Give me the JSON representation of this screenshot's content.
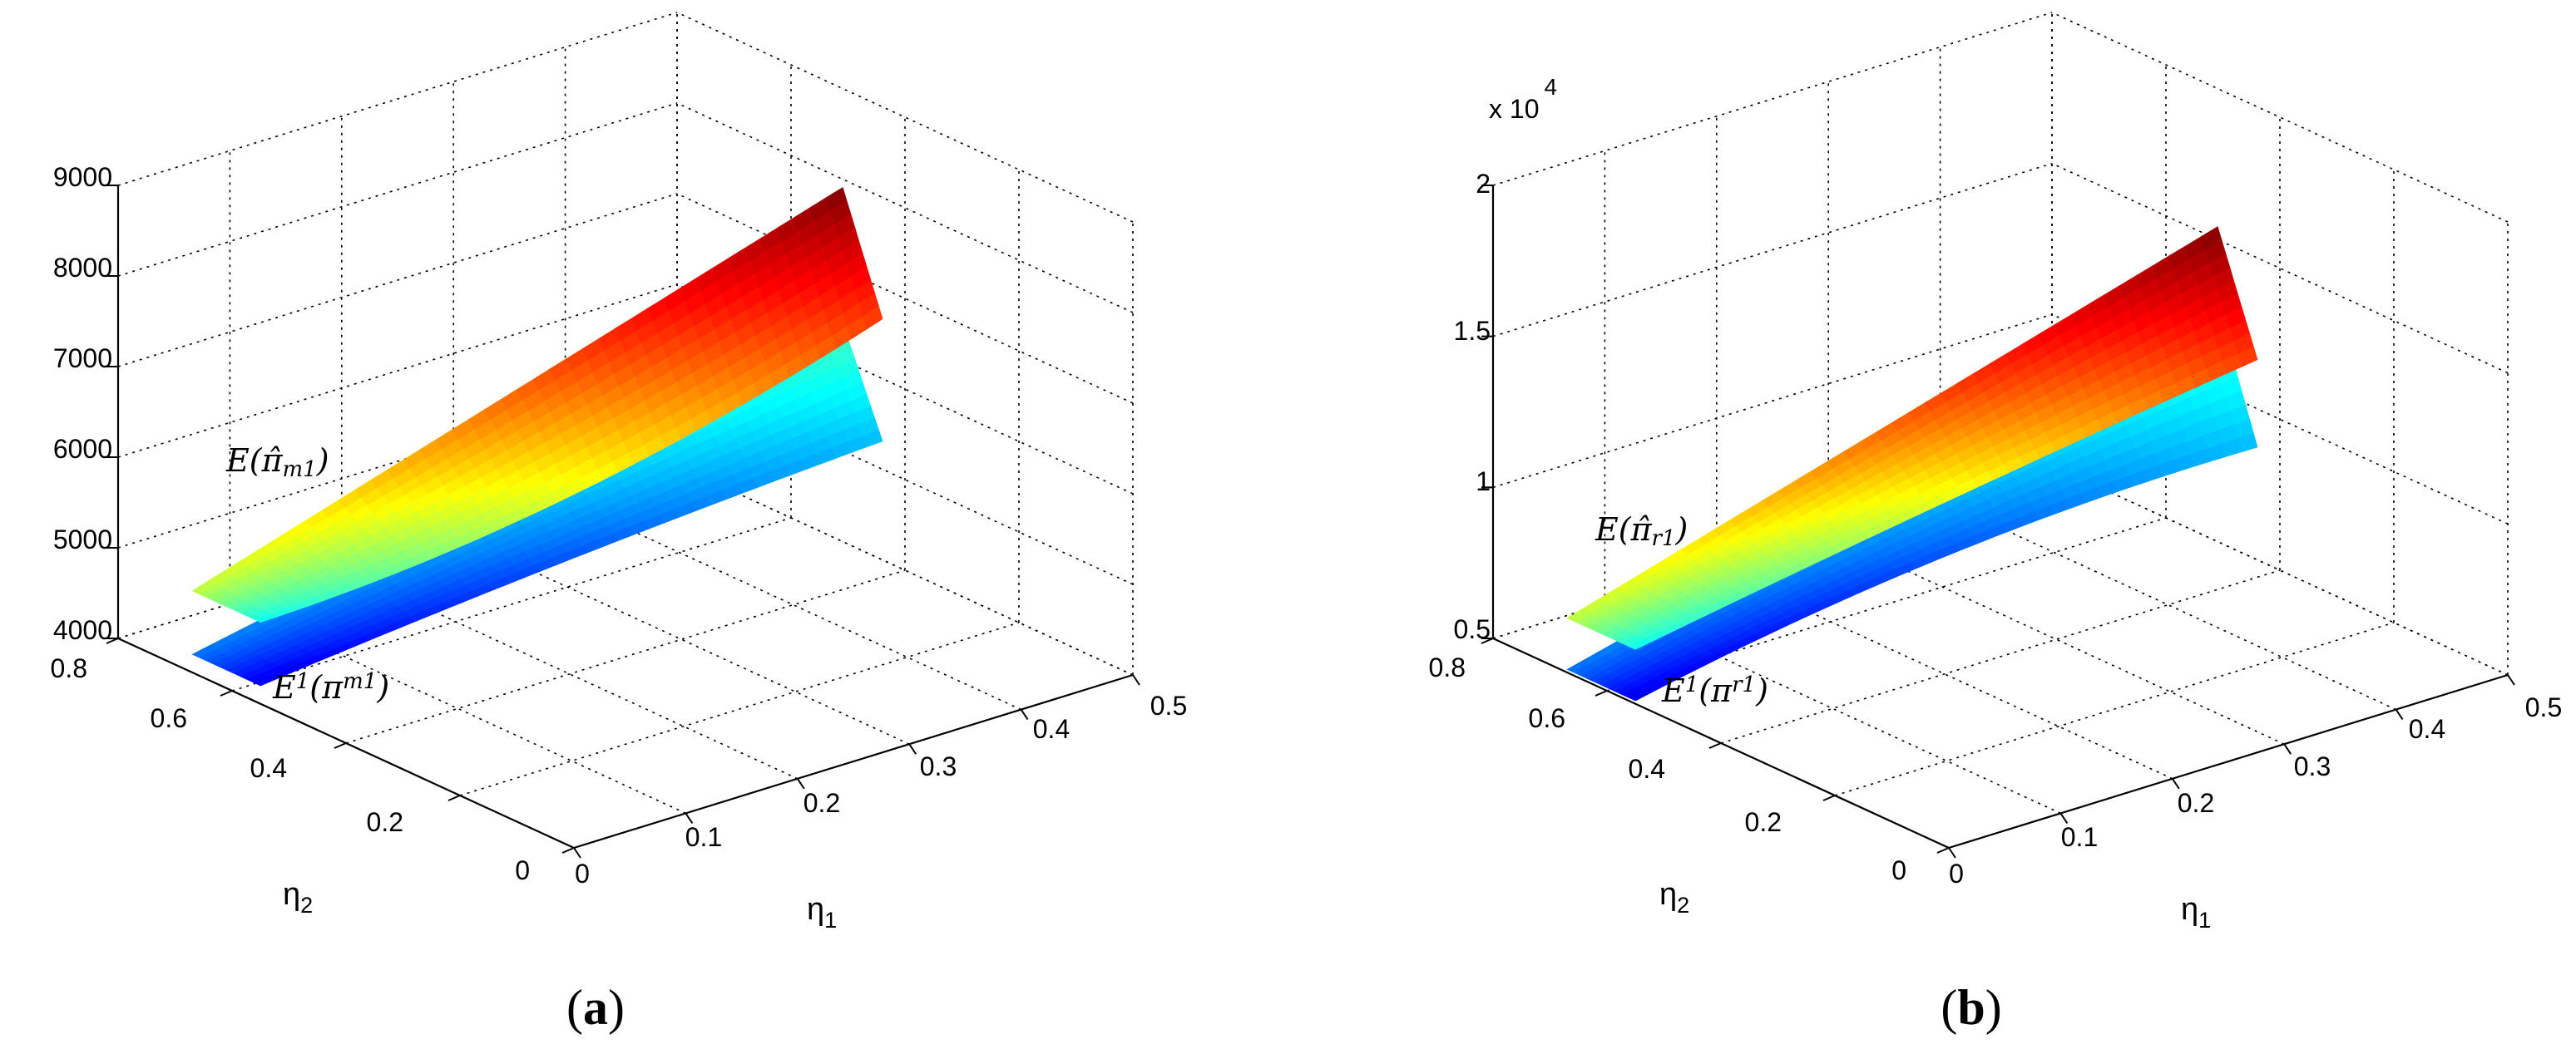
{
  "figure": {
    "panels": [
      {
        "label": "(a)",
        "label_letter": "a",
        "scale_exponent_text": "",
        "surface_labels": {
          "upper": {
            "main": "E(π̂",
            "sub": "m1",
            "close": ")"
          },
          "lower": {
            "main": "E",
            "sup": "1",
            "mid": "(π",
            "sub": "m1",
            "close": ")"
          }
        }
      },
      {
        "label": "(b)",
        "label_letter": "b",
        "scale_exponent_text": "x 10",
        "scale_exponent_power": "4",
        "surface_labels": {
          "upper": {
            "main": "E(π̂",
            "sub": "r1",
            "close": ")"
          },
          "lower": {
            "main": "E",
            "sup": "1",
            "mid": "(π",
            "sub": "r1",
            "close": ")"
          }
        }
      }
    ]
  },
  "chart_data": [
    {
      "type": "surface",
      "xlabel": "η",
      "xlabel_sub": "1",
      "ylabel": "η",
      "ylabel_sub": "2",
      "zlabel": "",
      "xlim": [
        0,
        0.5
      ],
      "ylim": [
        0,
        0.8
      ],
      "zlim": [
        4000,
        9000
      ],
      "x_ticks": [
        "0",
        "0.1",
        "0.2",
        "0.3",
        "0.4",
        "0.5"
      ],
      "y_ticks": [
        "0",
        "0.2",
        "0.4",
        "0.6",
        "0.8"
      ],
      "z_ticks": [
        "4000",
        "5000",
        "6000",
        "7000",
        "8000",
        "9000"
      ],
      "grid": true,
      "series": [
        {
          "name": "E(π̂m1)",
          "colormap": "jet",
          "corners": {
            "near": 4900,
            "far_eta1": 6850,
            "peak": 8100,
            "mid_low": 5600
          },
          "color_range": [
            "cyan",
            "red"
          ]
        },
        {
          "name": "E1(πm1)",
          "colormap": "jet",
          "corners": {
            "near": 4200,
            "far_eta1": 5500,
            "peak": 6600,
            "mid_low": 4900
          },
          "color_range": [
            "blue",
            "cyan"
          ]
        }
      ]
    },
    {
      "type": "surface",
      "xlabel": "η",
      "xlabel_sub": "1",
      "ylabel": "η",
      "ylabel_sub": "2",
      "zlabel": "",
      "xlim": [
        0,
        0.5
      ],
      "ylim": [
        0,
        0.8
      ],
      "zlim": [
        5000,
        20000
      ],
      "x_ticks": [
        "0",
        "0.1",
        "0.2",
        "0.3",
        "0.4",
        "0.5"
      ],
      "y_ticks": [
        "0",
        "0.2",
        "0.4",
        "0.6",
        "0.8"
      ],
      "z_ticks": [
        "0.5",
        "1",
        "1.5",
        "2"
      ],
      "grid": true,
      "series": [
        {
          "name": "E(π̂r1)",
          "colormap": "jet",
          "corners": {
            "near": 6800,
            "far_eta1": 12200,
            "peak": 16000,
            "mid_low": 9600
          },
          "color_range": [
            "cyan",
            "red"
          ]
        },
        {
          "name": "E1(πr1)",
          "colormap": "jet",
          "corners": {
            "near": 5100,
            "far_eta1": 9300,
            "peak": 13400,
            "mid_low": 7800
          },
          "color_range": [
            "blue",
            "cyan"
          ]
        }
      ]
    }
  ]
}
